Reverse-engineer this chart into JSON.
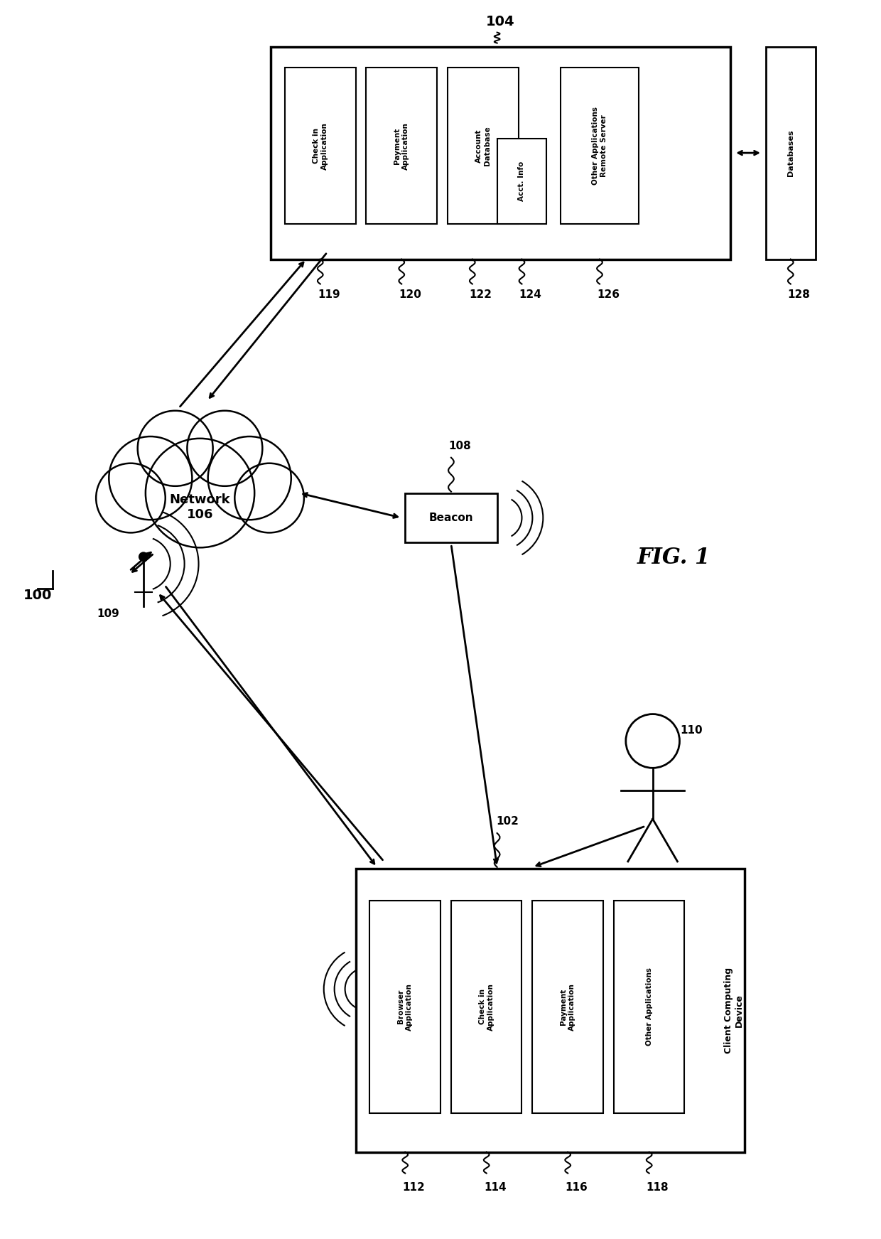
{
  "bg_color": "#ffffff",
  "fig_label": "FIG. 1",
  "system_label": "100",
  "remote_server_label": "104",
  "network_label": "Network\n106",
  "beacon_label": "Beacon",
  "beacon_id": "108",
  "client_device_label": "Client Computing\nDevice",
  "client_device_id": "102",
  "user_id": "110",
  "antenna_id": "109",
  "databases_label": "Databases",
  "databases_id": "128",
  "remote_boxes": [
    {
      "label": "Check in\nApplication",
      "id": "119"
    },
    {
      "label": "Payment\nApplication",
      "id": "120"
    },
    {
      "label": "Account\nDatabase",
      "id": "122"
    },
    {
      "label": "Acct. Info",
      "id": "124"
    },
    {
      "label": "Other Applications\nRemote Server",
      "id": "126"
    }
  ],
  "client_boxes": [
    {
      "label": "Browser\nApplication",
      "id": "112"
    },
    {
      "label": "Check in\nApplication",
      "id": "114"
    },
    {
      "label": "Payment\nApplication",
      "id": "116"
    },
    {
      "label": "Other Applications",
      "id": "118"
    }
  ]
}
